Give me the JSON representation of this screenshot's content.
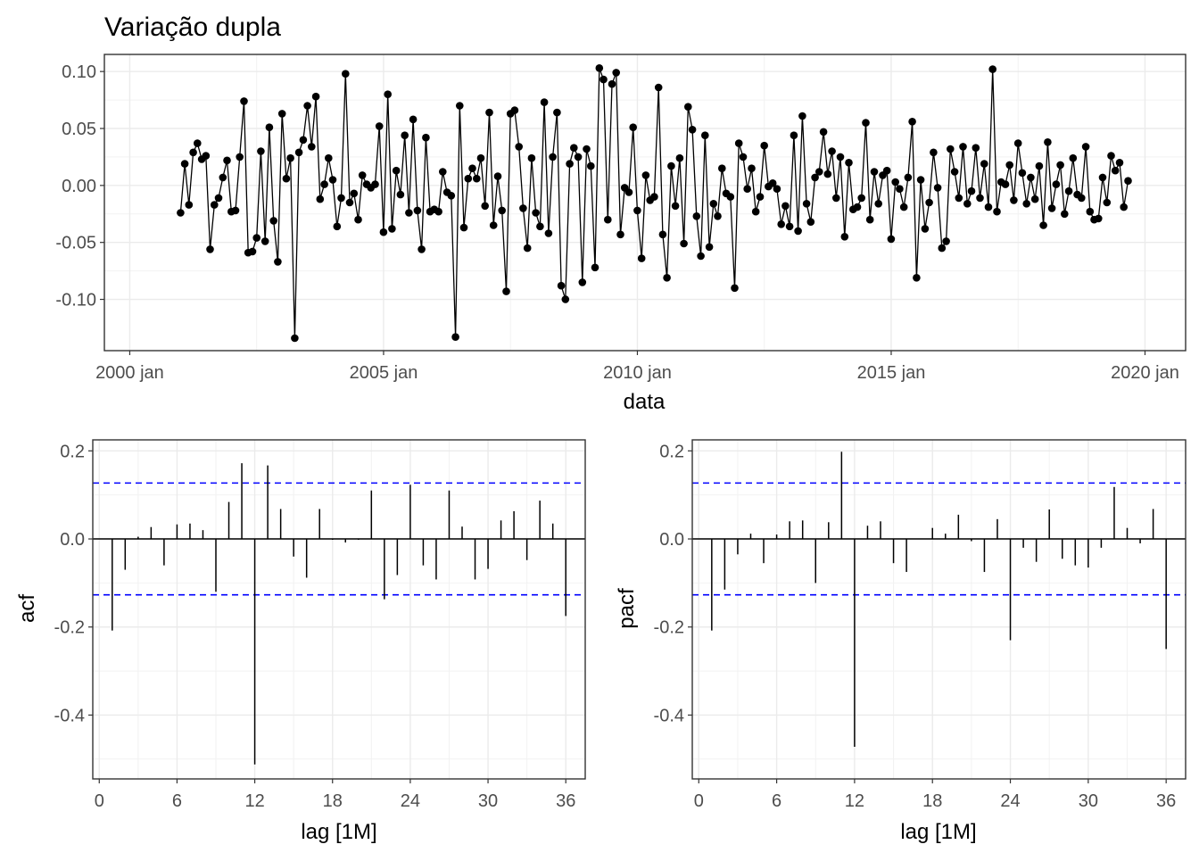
{
  "chart_data": [
    {
      "type": "line",
      "title": "Variação dupla",
      "xlabel": "data",
      "ylabel": "",
      "xlim": [
        1999.5,
        2020.8
      ],
      "ylim": [
        -0.145,
        0.115
      ],
      "xticks": [
        {
          "value": 2000,
          "label": "2000 jan"
        },
        {
          "value": 2005,
          "label": "2005 jan"
        },
        {
          "value": 2010,
          "label": "2010 jan"
        },
        {
          "value": 2015,
          "label": "2015 jan"
        },
        {
          "value": 2020,
          "label": "2020 jan"
        }
      ],
      "yticks": [
        {
          "value": 0.1,
          "label": "0.10"
        },
        {
          "value": 0.05,
          "label": "0.05"
        },
        {
          "value": 0.0,
          "label": "0.00"
        },
        {
          "value": -0.05,
          "label": "-0.05"
        },
        {
          "value": -0.1,
          "label": "-0.10"
        }
      ],
      "grid": true,
      "x_start": 2001.0,
      "x_step": 0.08333,
      "values": [
        -0.024,
        0.019,
        -0.017,
        0.029,
        0.037,
        0.023,
        0.026,
        -0.056,
        -0.017,
        -0.011,
        0.007,
        0.022,
        -0.023,
        -0.022,
        0.025,
        0.074,
        -0.059,
        -0.058,
        -0.046,
        0.03,
        -0.049,
        0.051,
        -0.031,
        -0.067,
        0.063,
        0.006,
        0.024,
        -0.134,
        0.029,
        0.04,
        0.07,
        0.034,
        0.078,
        -0.012,
        0.001,
        0.024,
        0.005,
        -0.036,
        -0.011,
        0.098,
        -0.015,
        -0.007,
        -0.03,
        0.009,
        0.001,
        -0.002,
        0.001,
        0.052,
        -0.041,
        0.08,
        -0.038,
        0.013,
        -0.008,
        0.044,
        -0.024,
        0.058,
        -0.022,
        -0.056,
        0.042,
        -0.023,
        -0.021,
        -0.023,
        0.012,
        -0.006,
        -0.009,
        -0.133,
        0.07,
        -0.037,
        0.006,
        0.015,
        0.006,
        0.024,
        -0.018,
        0.064,
        -0.035,
        0.008,
        -0.022,
        -0.093,
        0.063,
        0.066,
        0.034,
        -0.02,
        -0.055,
        0.024,
        -0.024,
        -0.036,
        0.073,
        -0.042,
        0.025,
        0.064,
        -0.088,
        -0.1,
        0.019,
        0.033,
        0.025,
        -0.085,
        0.032,
        0.017,
        -0.072,
        0.103,
        0.093,
        -0.03,
        0.089,
        0.099,
        -0.043,
        -0.002,
        -0.006,
        0.051,
        -0.022,
        -0.064,
        0.009,
        -0.013,
        -0.01,
        0.086,
        -0.043,
        -0.081,
        0.017,
        -0.018,
        0.024,
        -0.051,
        0.069,
        0.049,
        -0.027,
        -0.062,
        0.044,
        -0.054,
        -0.016,
        -0.027,
        0.015,
        -0.007,
        -0.01,
        -0.09,
        0.037,
        0.025,
        -0.003,
        0.015,
        -0.023,
        -0.01,
        0.035,
        -0.001,
        0.002,
        -0.003,
        -0.034,
        -0.018,
        -0.036,
        0.044,
        -0.04,
        0.061,
        -0.016,
        -0.032,
        0.007,
        0.012,
        0.047,
        0.01,
        0.03,
        -0.011,
        0.025,
        -0.045,
        0.02,
        -0.021,
        -0.019,
        -0.011,
        0.055,
        -0.03,
        0.012,
        -0.016,
        0.009,
        0.013,
        -0.047,
        0.003,
        -0.003,
        -0.019,
        0.007,
        0.056,
        -0.081,
        0.005,
        -0.038,
        -0.015,
        0.029,
        -0.002,
        -0.055,
        -0.049,
        0.032,
        0.012,
        -0.011,
        0.034,
        -0.016,
        -0.005,
        0.033,
        -0.011,
        0.019,
        -0.019,
        0.102,
        -0.023,
        0.003,
        0.001,
        0.018,
        -0.013,
        0.037,
        0.011,
        -0.016,
        0.007,
        -0.012,
        0.017,
        -0.035,
        0.038,
        -0.02,
        0.001,
        0.018,
        -0.025,
        -0.005,
        0.024,
        -0.008,
        -0.011,
        0.034,
        -0.023,
        -0.03,
        -0.029,
        0.007,
        -0.015,
        0.026,
        0.013,
        0.02,
        -0.019,
        0.004
      ]
    },
    {
      "type": "bar",
      "title": "",
      "xlabel": "lag [1M]",
      "ylabel": "acf",
      "xlim": [
        -0.5,
        37.5
      ],
      "ylim": [
        -0.545,
        0.225
      ],
      "xticks": [
        0,
        6,
        12,
        18,
        24,
        30,
        36
      ],
      "yticks": [
        {
          "value": 0.2,
          "label": "0.2"
        },
        {
          "value": 0.0,
          "label": "0.0"
        },
        {
          "value": -0.2,
          "label": "-0.2"
        },
        {
          "value": -0.4,
          "label": "-0.4"
        }
      ],
      "confidence_bound": 0.127,
      "confidence_color": "#0000ff",
      "lags": [
        1,
        2,
        3,
        4,
        5,
        6,
        7,
        8,
        9,
        10,
        11,
        12,
        13,
        14,
        15,
        16,
        17,
        18,
        19,
        20,
        21,
        22,
        23,
        24,
        25,
        26,
        27,
        28,
        29,
        30,
        31,
        32,
        33,
        34,
        35,
        36
      ],
      "values": [
        -0.208,
        -0.07,
        0.005,
        0.027,
        -0.06,
        0.033,
        0.035,
        0.02,
        -0.12,
        0.084,
        0.172,
        -0.512,
        0.167,
        0.068,
        -0.04,
        -0.088,
        0.068,
        -0.002,
        -0.008,
        -0.002,
        0.11,
        -0.137,
        -0.082,
        0.123,
        -0.06,
        -0.092,
        0.11,
        0.028,
        -0.092,
        -0.068,
        0.042,
        0.063,
        -0.048,
        0.087,
        0.035,
        -0.175
      ]
    },
    {
      "type": "bar",
      "title": "",
      "xlabel": "lag [1M]",
      "ylabel": "pacf",
      "xlim": [
        -0.5,
        37.5
      ],
      "ylim": [
        -0.545,
        0.225
      ],
      "xticks": [
        0,
        6,
        12,
        18,
        24,
        30,
        36
      ],
      "yticks": [
        {
          "value": 0.2,
          "label": "0.2"
        },
        {
          "value": 0.0,
          "label": "0.0"
        },
        {
          "value": -0.2,
          "label": "-0.2"
        },
        {
          "value": -0.4,
          "label": "-0.4"
        }
      ],
      "confidence_bound": 0.127,
      "confidence_color": "#0000ff",
      "lags": [
        1,
        2,
        3,
        4,
        5,
        6,
        7,
        8,
        9,
        10,
        11,
        12,
        13,
        14,
        15,
        16,
        17,
        18,
        19,
        20,
        21,
        22,
        23,
        24,
        25,
        26,
        27,
        28,
        29,
        30,
        31,
        32,
        33,
        34,
        35,
        36
      ],
      "values": [
        -0.208,
        -0.115,
        -0.035,
        0.012,
        -0.055,
        0.01,
        0.04,
        0.042,
        -0.1,
        0.038,
        0.198,
        -0.472,
        0.03,
        0.04,
        -0.055,
        -0.075,
        0.0,
        0.025,
        0.012,
        0.055,
        -0.005,
        -0.075,
        0.045,
        -0.23,
        -0.02,
        -0.052,
        0.067,
        -0.045,
        -0.06,
        -0.065,
        -0.02,
        0.118,
        0.025,
        -0.01,
        0.068,
        -0.25
      ]
    }
  ]
}
